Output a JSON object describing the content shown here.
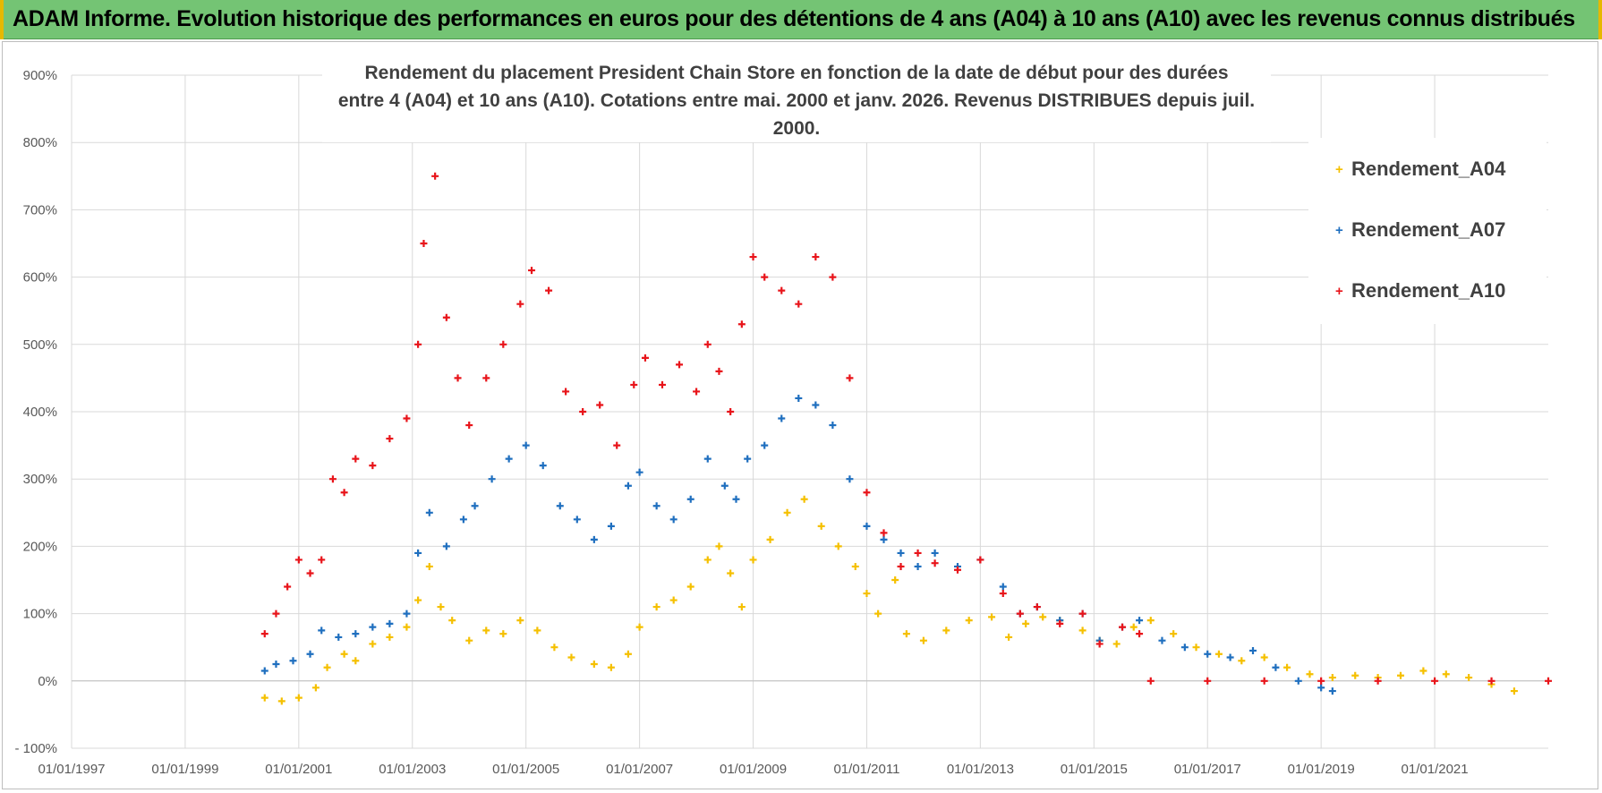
{
  "header": {
    "title": "ADAM Informe. Evolution historique des performances en euros pour des détentions de 4 ans (A04) à 10 ans (A10) avec les revenus connus distribués"
  },
  "chart_data": {
    "type": "scatter",
    "title_line1": "Rendement du placement President Chain Store  en fonction de la date de début pour des durées",
    "title_line2": "entre 4 (A04) et 10 ans (A10). Cotations entre mai. 2000 et janv. 2026. Revenus DISTRIBUES depuis juil. 2000.",
    "ylim": [
      -100,
      900
    ],
    "yticks": [
      -100,
      0,
      100,
      200,
      300,
      400,
      500,
      600,
      700,
      800,
      900
    ],
    "ytick_labels": [
      "- 100%",
      "0%",
      "100%",
      "200%",
      "300%",
      "400%",
      "500%",
      "600%",
      "700%",
      "800%",
      "900%"
    ],
    "xlim": [
      1997.0,
      2023.0
    ],
    "xticks": [
      1997,
      1999,
      2001,
      2003,
      2005,
      2007,
      2009,
      2011,
      2013,
      2015,
      2017,
      2019,
      2021
    ],
    "xtick_labels": [
      "01/01/1997",
      "01/01/1999",
      "01/01/2001",
      "01/01/2003",
      "01/01/2005",
      "01/01/2007",
      "01/01/2009",
      "01/01/2011",
      "01/01/2013",
      "01/01/2015",
      "01/01/2017",
      "01/01/2019",
      "01/01/2021"
    ],
    "legend_position": "top-right",
    "series": [
      {
        "name": "Rendement_A04",
        "color": "#f5c000",
        "points": [
          [
            2000.4,
            -25
          ],
          [
            2000.7,
            -30
          ],
          [
            2001.0,
            -25
          ],
          [
            2001.3,
            -10
          ],
          [
            2001.5,
            20
          ],
          [
            2001.8,
            40
          ],
          [
            2002.0,
            30
          ],
          [
            2002.3,
            55
          ],
          [
            2002.6,
            65
          ],
          [
            2002.9,
            80
          ],
          [
            2003.1,
            120
          ],
          [
            2003.3,
            170
          ],
          [
            2003.5,
            110
          ],
          [
            2003.7,
            90
          ],
          [
            2004.0,
            60
          ],
          [
            2004.3,
            75
          ],
          [
            2004.6,
            70
          ],
          [
            2004.9,
            90
          ],
          [
            2005.2,
            75
          ],
          [
            2005.5,
            50
          ],
          [
            2005.8,
            35
          ],
          [
            2006.2,
            25
          ],
          [
            2006.5,
            20
          ],
          [
            2006.8,
            40
          ],
          [
            2007.0,
            80
          ],
          [
            2007.3,
            110
          ],
          [
            2007.6,
            120
          ],
          [
            2007.9,
            140
          ],
          [
            2008.2,
            180
          ],
          [
            2008.4,
            200
          ],
          [
            2008.6,
            160
          ],
          [
            2008.8,
            110
          ],
          [
            2009.0,
            180
          ],
          [
            2009.3,
            210
          ],
          [
            2009.6,
            250
          ],
          [
            2009.9,
            270
          ],
          [
            2010.2,
            230
          ],
          [
            2010.5,
            200
          ],
          [
            2010.8,
            170
          ],
          [
            2011.0,
            130
          ],
          [
            2011.2,
            100
          ],
          [
            2011.5,
            150
          ],
          [
            2011.7,
            70
          ],
          [
            2012.0,
            60
          ],
          [
            2012.4,
            75
          ],
          [
            2012.8,
            90
          ],
          [
            2013.2,
            95
          ],
          [
            2013.5,
            65
          ],
          [
            2013.8,
            85
          ],
          [
            2014.1,
            95
          ],
          [
            2014.4,
            90
          ],
          [
            2014.8,
            75
          ],
          [
            2015.1,
            60
          ],
          [
            2015.4,
            55
          ],
          [
            2015.7,
            80
          ],
          [
            2016.0,
            90
          ],
          [
            2016.4,
            70
          ],
          [
            2016.8,
            50
          ],
          [
            2017.2,
            40
          ],
          [
            2017.6,
            30
          ],
          [
            2018.0,
            35
          ],
          [
            2018.4,
            20
          ],
          [
            2018.8,
            10
          ],
          [
            2019.2,
            5
          ],
          [
            2019.6,
            8
          ],
          [
            2020.0,
            5
          ],
          [
            2020.4,
            8
          ],
          [
            2020.8,
            15
          ],
          [
            2021.2,
            10
          ],
          [
            2021.6,
            5
          ],
          [
            2022.0,
            -5
          ],
          [
            2022.4,
            -15
          ]
        ]
      },
      {
        "name": "Rendement_A07",
        "color": "#1f6fbf",
        "points": [
          [
            2000.4,
            15
          ],
          [
            2000.6,
            25
          ],
          [
            2000.9,
            30
          ],
          [
            2001.2,
            40
          ],
          [
            2001.4,
            75
          ],
          [
            2001.7,
            65
          ],
          [
            2002.0,
            70
          ],
          [
            2002.3,
            80
          ],
          [
            2002.6,
            85
          ],
          [
            2002.9,
            100
          ],
          [
            2003.1,
            190
          ],
          [
            2003.3,
            250
          ],
          [
            2003.6,
            200
          ],
          [
            2003.9,
            240
          ],
          [
            2004.1,
            260
          ],
          [
            2004.4,
            300
          ],
          [
            2004.7,
            330
          ],
          [
            2005.0,
            350
          ],
          [
            2005.3,
            320
          ],
          [
            2005.6,
            260
          ],
          [
            2005.9,
            240
          ],
          [
            2006.2,
            210
          ],
          [
            2006.5,
            230
          ],
          [
            2006.8,
            290
          ],
          [
            2007.0,
            310
          ],
          [
            2007.3,
            260
          ],
          [
            2007.6,
            240
          ],
          [
            2007.9,
            270
          ],
          [
            2008.2,
            330
          ],
          [
            2008.5,
            290
          ],
          [
            2008.7,
            270
          ],
          [
            2008.9,
            330
          ],
          [
            2009.2,
            350
          ],
          [
            2009.5,
            390
          ],
          [
            2009.8,
            420
          ],
          [
            2010.1,
            410
          ],
          [
            2010.4,
            380
          ],
          [
            2010.7,
            300
          ],
          [
            2011.0,
            230
          ],
          [
            2011.3,
            210
          ],
          [
            2011.6,
            190
          ],
          [
            2011.9,
            170
          ],
          [
            2012.2,
            190
          ],
          [
            2012.6,
            170
          ],
          [
            2013.0,
            180
          ],
          [
            2013.4,
            140
          ],
          [
            2013.7,
            100
          ],
          [
            2014.0,
            110
          ],
          [
            2014.4,
            90
          ],
          [
            2014.8,
            100
          ],
          [
            2015.1,
            60
          ],
          [
            2015.5,
            80
          ],
          [
            2015.8,
            90
          ],
          [
            2016.2,
            60
          ],
          [
            2016.6,
            50
          ],
          [
            2017.0,
            40
          ],
          [
            2017.4,
            35
          ],
          [
            2017.8,
            45
          ],
          [
            2018.2,
            20
          ],
          [
            2018.6,
            0
          ],
          [
            2019.0,
            -10
          ],
          [
            2019.2,
            -15
          ]
        ]
      },
      {
        "name": "Rendement_A10",
        "color": "#e8141a",
        "points": [
          [
            2000.4,
            70
          ],
          [
            2000.6,
            100
          ],
          [
            2000.8,
            140
          ],
          [
            2001.0,
            180
          ],
          [
            2001.2,
            160
          ],
          [
            2001.4,
            180
          ],
          [
            2001.6,
            300
          ],
          [
            2001.8,
            280
          ],
          [
            2002.0,
            330
          ],
          [
            2002.3,
            320
          ],
          [
            2002.6,
            360
          ],
          [
            2002.9,
            390
          ],
          [
            2003.1,
            500
          ],
          [
            2003.2,
            650
          ],
          [
            2003.4,
            750
          ],
          [
            2003.6,
            540
          ],
          [
            2003.8,
            450
          ],
          [
            2004.0,
            380
          ],
          [
            2004.3,
            450
          ],
          [
            2004.6,
            500
          ],
          [
            2004.9,
            560
          ],
          [
            2005.1,
            610
          ],
          [
            2005.4,
            580
          ],
          [
            2005.7,
            430
          ],
          [
            2006.0,
            400
          ],
          [
            2006.3,
            410
          ],
          [
            2006.6,
            350
          ],
          [
            2006.9,
            440
          ],
          [
            2007.1,
            480
          ],
          [
            2007.4,
            440
          ],
          [
            2007.7,
            470
          ],
          [
            2008.0,
            430
          ],
          [
            2008.2,
            500
          ],
          [
            2008.4,
            460
          ],
          [
            2008.6,
            400
          ],
          [
            2008.8,
            530
          ],
          [
            2009.0,
            630
          ],
          [
            2009.2,
            600
          ],
          [
            2009.5,
            580
          ],
          [
            2009.8,
            560
          ],
          [
            2010.1,
            630
          ],
          [
            2010.4,
            600
          ],
          [
            2010.7,
            450
          ],
          [
            2011.0,
            280
          ],
          [
            2011.3,
            220
          ],
          [
            2011.6,
            170
          ],
          [
            2011.9,
            190
          ],
          [
            2012.2,
            175
          ],
          [
            2012.6,
            165
          ],
          [
            2013.0,
            180
          ],
          [
            2013.4,
            130
          ],
          [
            2013.7,
            100
          ],
          [
            2014.0,
            110
          ],
          [
            2014.4,
            85
          ],
          [
            2014.8,
            100
          ],
          [
            2015.1,
            55
          ],
          [
            2015.5,
            80
          ],
          [
            2015.8,
            70
          ],
          [
            2016.0,
            0
          ],
          [
            2017.0,
            0
          ],
          [
            2018.0,
            0
          ],
          [
            2019.0,
            0
          ],
          [
            2020.0,
            0
          ],
          [
            2021.0,
            0
          ],
          [
            2022.0,
            0
          ],
          [
            2023.0,
            0
          ]
        ]
      }
    ]
  }
}
